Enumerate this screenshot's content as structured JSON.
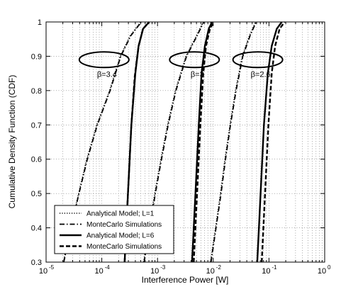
{
  "chart_data": {
    "type": "line",
    "xlabel": "Interference Power [W]",
    "ylabel": "Cumulative Density Function (CDF)",
    "xscale": "log",
    "xlim": [
      1e-05,
      1
    ],
    "ylim": [
      0.3,
      1
    ],
    "grid": true,
    "x_ticks": [
      1e-05,
      0.0001,
      0.001,
      0.01,
      0.1,
      1
    ],
    "x_tick_labels": [
      {
        "base": "10",
        "exp": "-5"
      },
      {
        "base": "10",
        "exp": "-4"
      },
      {
        "base": "10",
        "exp": "-3"
      },
      {
        "base": "10",
        "exp": "-2"
      },
      {
        "base": "10",
        "exp": "-1"
      },
      {
        "base": "10",
        "exp": "0"
      }
    ],
    "y_ticks": [
      0.3,
      0.4,
      0.5,
      0.6,
      0.7,
      0.8,
      0.9,
      1
    ],
    "y_tick_labels": [
      "0.3",
      "0.4",
      "0.5",
      "0.6",
      "0.7",
      "0.8",
      "0.9",
      "1"
    ],
    "legend_position": "bottom-left",
    "legend": [
      {
        "label": "Analytical Model; L=1",
        "style": "dotted"
      },
      {
        "label": "MonteCarlo Simulations",
        "style": "dashdot"
      },
      {
        "label": "Analytical Model; L=6",
        "style": "solid"
      },
      {
        "label": "MonteCarlo Simulations",
        "style": "dashed"
      }
    ],
    "annotations": [
      {
        "label": "β=3.4",
        "ellipse_center": [
          0.00011,
          0.89
        ]
      },
      {
        "label": "β=3",
        "ellipse_center": [
          0.0046,
          0.89
        ]
      },
      {
        "label": "β=2.6",
        "ellipse_center": [
          0.063,
          0.89
        ]
      }
    ],
    "series": [
      {
        "group": "β=3.4",
        "style": "dotted",
        "points": [
          [
            2.05e-05,
            0.3
          ],
          [
            2.75e-05,
            0.4
          ],
          [
            3.85e-05,
            0.5
          ],
          [
            5.37e-05,
            0.6
          ],
          [
            8.13e-05,
            0.7
          ],
          [
            0.000138,
            0.8
          ],
          [
            0.000214,
            0.9
          ],
          [
            0.000324,
            0.96
          ],
          [
            0.000501,
            1.0
          ]
        ]
      },
      {
        "group": "β=3.4",
        "style": "dashdot",
        "points": [
          [
            2.08e-05,
            0.3
          ],
          [
            2.8e-05,
            0.4
          ],
          [
            3.89e-05,
            0.5
          ],
          [
            5.5e-05,
            0.6
          ],
          [
            8.32e-05,
            0.7
          ],
          [
            0.000141,
            0.8
          ],
          [
            0.000219,
            0.9
          ],
          [
            0.000331,
            0.96
          ],
          [
            0.000513,
            1.0
          ]
        ]
      },
      {
        "group": "β=3.4",
        "style": "solid",
        "points": [
          [
            0.000257,
            0.3
          ],
          [
            0.000295,
            0.5
          ],
          [
            0.000339,
            0.7
          ],
          [
            0.0004,
            0.85
          ],
          [
            0.000457,
            0.93
          ],
          [
            0.00055,
            0.98
          ],
          [
            0.000708,
            1.0
          ]
        ]
      },
      {
        "group": "β=3.4",
        "style": "dashed",
        "points": [
          [
            0.000257,
            0.3
          ],
          [
            0.000295,
            0.5
          ],
          [
            0.000339,
            0.7
          ],
          [
            0.000389,
            0.84
          ],
          [
            0.000457,
            0.93
          ],
          [
            0.00055,
            0.98
          ],
          [
            0.000708,
            1.0
          ]
        ]
      },
      {
        "group": "β=3",
        "style": "dotted",
        "points": [
          [
            0.000562,
            0.3
          ],
          [
            0.000708,
            0.4
          ],
          [
            0.000891,
            0.5
          ],
          [
            0.00115,
            0.6
          ],
          [
            0.00151,
            0.7
          ],
          [
            0.00209,
            0.8
          ],
          [
            0.00324,
            0.9
          ],
          [
            0.00501,
            0.96
          ],
          [
            0.00661,
            1.0
          ]
        ]
      },
      {
        "group": "β=3",
        "style": "dashdot",
        "points": [
          [
            0.000575,
            0.3
          ],
          [
            0.000724,
            0.4
          ],
          [
            0.000912,
            0.5
          ],
          [
            0.00118,
            0.6
          ],
          [
            0.00155,
            0.7
          ],
          [
            0.00214,
            0.8
          ],
          [
            0.00331,
            0.9
          ],
          [
            0.00513,
            0.96
          ],
          [
            0.00676,
            1.0
          ]
        ]
      },
      {
        "group": "β=3",
        "style": "solid",
        "points": [
          [
            0.00417,
            0.3
          ],
          [
            0.00479,
            0.5
          ],
          [
            0.0055,
            0.7
          ],
          [
            0.00617,
            0.85
          ],
          [
            0.00708,
            0.93
          ],
          [
            0.00832,
            0.98
          ],
          [
            0.00955,
            1.0
          ]
        ]
      },
      {
        "group": "β=3",
        "style": "dashed",
        "points": [
          [
            0.00447,
            0.3
          ],
          [
            0.00513,
            0.5
          ],
          [
            0.00589,
            0.7
          ],
          [
            0.00661,
            0.85
          ],
          [
            0.00741,
            0.93
          ],
          [
            0.00871,
            0.98
          ],
          [
            0.0102,
            1.0
          ]
        ]
      },
      {
        "group": "β=2.6",
        "style": "dotted",
        "points": [
          [
            0.00891,
            0.3
          ],
          [
            0.011,
            0.4
          ],
          [
            0.0135,
            0.5
          ],
          [
            0.0162,
            0.6
          ],
          [
            0.02,
            0.7
          ],
          [
            0.0251,
            0.8
          ],
          [
            0.0331,
            0.9
          ],
          [
            0.0447,
            0.96
          ],
          [
            0.0575,
            1.0
          ]
        ]
      },
      {
        "group": "β=2.6",
        "style": "dashdot",
        "points": [
          [
            0.00912,
            0.3
          ],
          [
            0.0112,
            0.4
          ],
          [
            0.0138,
            0.5
          ],
          [
            0.0166,
            0.6
          ],
          [
            0.0204,
            0.7
          ],
          [
            0.0257,
            0.8
          ],
          [
            0.0339,
            0.9
          ],
          [
            0.0457,
            0.96
          ],
          [
            0.0589,
            1.0
          ]
        ]
      },
      {
        "group": "β=2.6",
        "style": "solid",
        "points": [
          [
            0.0617,
            0.3
          ],
          [
            0.0708,
            0.5
          ],
          [
            0.0813,
            0.7
          ],
          [
            0.0955,
            0.85
          ],
          [
            0.112,
            0.93
          ],
          [
            0.138,
            0.98
          ],
          [
            0.17,
            1.0
          ]
        ]
      },
      {
        "group": "β=2.6",
        "style": "dashed",
        "points": [
          [
            0.0741,
            0.3
          ],
          [
            0.0851,
            0.5
          ],
          [
            0.0977,
            0.7
          ],
          [
            0.112,
            0.85
          ],
          [
            0.129,
            0.93
          ],
          [
            0.155,
            0.98
          ],
          [
            0.191,
            1.0
          ]
        ]
      }
    ]
  }
}
